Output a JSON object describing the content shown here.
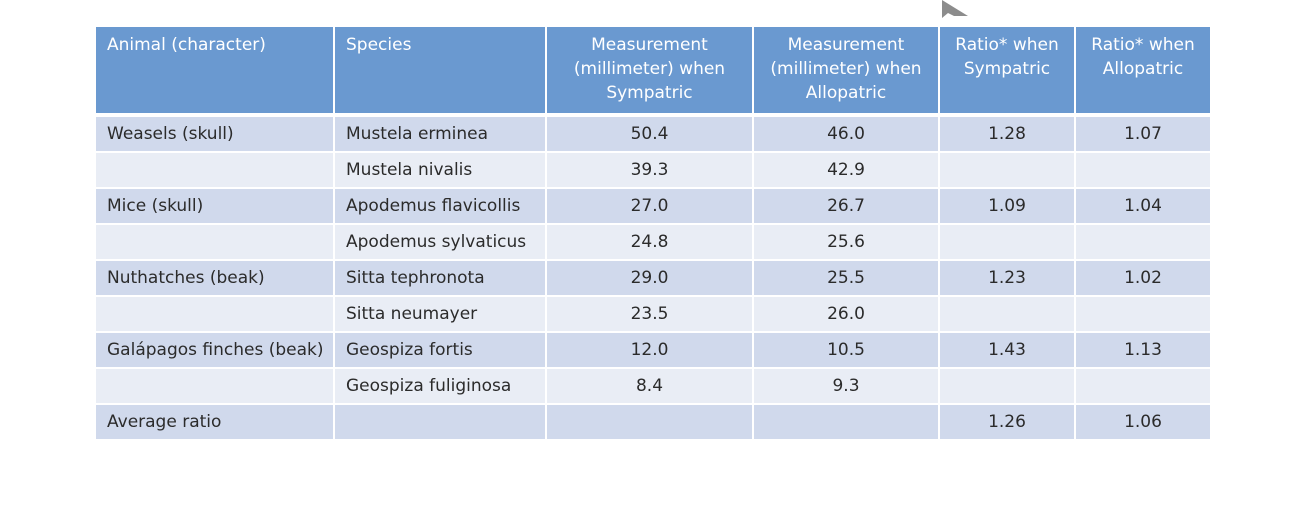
{
  "table": {
    "headers": [
      "Animal (character)",
      "Species",
      "Measurement (millimeter) when Sympatric",
      "Measurement (millimeter) when Allopatric",
      "Ratio* when Sympatric",
      "Ratio* when Allopatric"
    ],
    "rows": [
      [
        "Weasels (skull)",
        "Mustela erminea",
        "50.4",
        "46.0",
        "1.28",
        "1.07"
      ],
      [
        "",
        "Mustela nivalis",
        "39.3",
        "42.9",
        "",
        ""
      ],
      [
        "Mice (skull)",
        "Apodemus flavicollis",
        "27.0",
        "26.7",
        "1.09",
        "1.04"
      ],
      [
        "",
        "Apodemus sylvaticus",
        "24.8",
        "25.6",
        "",
        ""
      ],
      [
        "Nuthatches (beak)",
        "Sitta tephronota",
        "29.0",
        "25.5",
        "1.23",
        "1.02"
      ],
      [
        "",
        "Sitta neumayer",
        "23.5",
        "26.0",
        "",
        ""
      ],
      [
        "Galápagos finches (beak)",
        "Geospiza fortis",
        "12.0",
        "10.5",
        "1.43",
        "1.13"
      ],
      [
        "",
        "Geospiza fuliginosa",
        "8.4",
        "9.3",
        "",
        ""
      ],
      [
        "Average ratio",
        "",
        "",
        "",
        "1.26",
        "1.06"
      ]
    ]
  },
  "colors": {
    "header_bg": "#6a99d0",
    "row_dark": "#d0d9ec",
    "row_light": "#e9edf5"
  },
  "icons": {
    "cursor": "mouse-pointer-icon"
  }
}
